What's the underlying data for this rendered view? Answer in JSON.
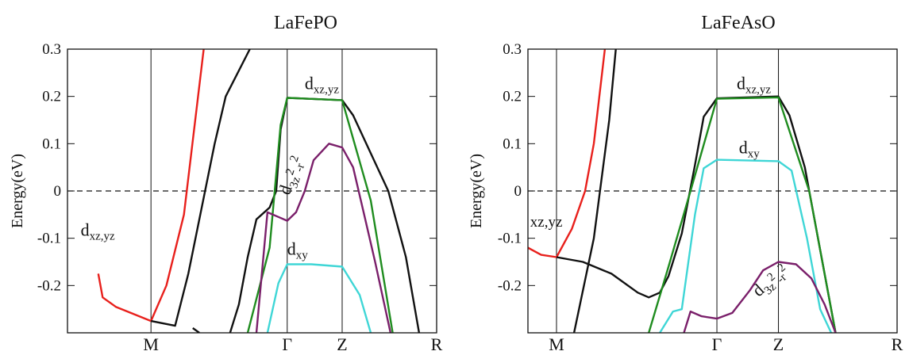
{
  "chart_data": [
    {
      "type": "line",
      "title": "LaFePO",
      "xlabel": "",
      "ylabel": "Energy(eV)",
      "ylim": [
        -0.3,
        0.3
      ],
      "yticks": [
        "0.3",
        "0.2",
        "0.1",
        "0",
        "-0.1",
        "-0.2"
      ],
      "ytick_values": [
        0.3,
        0.2,
        0.1,
        0,
        -0.1,
        -0.2
      ],
      "kpoints": [
        {
          "label": "M",
          "x": 0.38
        },
        {
          "label": "Γ",
          "x": 1.0
        },
        {
          "label": "Z",
          "x": 1.25
        },
        {
          "label": "R",
          "x": 1.68
        }
      ],
      "xlim": [
        0,
        1.68
      ],
      "fermi_level": 0,
      "grid": false,
      "colors": {
        "red": "#e8201c",
        "black": "#111111",
        "green": "#1f8c1f",
        "purple": "#7a1f6a",
        "cyan": "#3fd6d6"
      },
      "annotations": [
        {
          "text": "dxz,yz",
          "x": 1.08,
          "y": 0.215
        },
        {
          "text": "d3z2-r2",
          "x": 1.01,
          "y": -0.01,
          "rotate": -72
        },
        {
          "text": "dxy",
          "x": 1.0,
          "y": -0.135
        },
        {
          "text": "dxz,yz",
          "x": 0.06,
          "y": -0.095
        }
      ],
      "series": [
        {
          "color": "red",
          "x": [
            0.14,
            0.16,
            0.22,
            0.38,
            0.45,
            0.53,
            0.62
          ],
          "y": [
            -0.175,
            -0.225,
            -0.245,
            -0.275,
            -0.2,
            -0.05,
            0.3
          ]
        },
        {
          "color": "black",
          "x": [
            0.38,
            0.49,
            0.55,
            0.67,
            0.72,
            0.83
          ],
          "y": [
            -0.275,
            -0.285,
            -0.175,
            0.1,
            0.2,
            0.3
          ]
        },
        {
          "color": "black",
          "x": [
            0.57,
            0.6
          ],
          "y": [
            -0.29,
            -0.3
          ]
        },
        {
          "color": "black",
          "x": [
            0.74,
            0.78,
            0.82,
            0.86,
            0.92,
            0.95,
            0.97,
            1.0,
            1.25,
            1.3,
            1.4,
            1.46,
            1.54,
            1.6
          ],
          "y": [
            -0.3,
            -0.24,
            -0.14,
            -0.06,
            -0.035,
            0.0,
            0.13,
            0.197,
            0.192,
            0.16,
            0.06,
            0.0,
            -0.14,
            -0.3
          ]
        },
        {
          "color": "green",
          "x": [
            0.82,
            0.92,
            0.97,
            1.0,
            1.25,
            1.38,
            1.48
          ],
          "y": [
            -0.3,
            -0.12,
            0.14,
            0.197,
            0.192,
            -0.02,
            -0.3
          ]
        },
        {
          "color": "purple",
          "x": [
            0.86,
            0.91,
            0.96,
            1.0,
            1.04,
            1.08,
            1.12,
            1.19,
            1.25,
            1.3,
            1.35,
            1.4,
            1.47
          ],
          "y": [
            -0.3,
            -0.045,
            -0.055,
            -0.063,
            -0.045,
            0.0,
            0.065,
            0.1,
            0.092,
            0.05,
            -0.05,
            -0.15,
            -0.3
          ]
        },
        {
          "color": "cyan",
          "x": [
            0.91,
            0.96,
            1.0,
            1.11,
            1.25,
            1.33,
            1.38
          ],
          "y": [
            -0.3,
            -0.195,
            -0.155,
            -0.155,
            -0.16,
            -0.22,
            -0.3
          ]
        }
      ]
    },
    {
      "type": "line",
      "title": "LaFeAsO",
      "xlabel": "",
      "ylabel": "Energy(eV)",
      "ylim": [
        -0.3,
        0.3
      ],
      "yticks": [
        "0.3",
        "0.2",
        "0.1",
        "0",
        "-0.1",
        "-0.2"
      ],
      "ytick_values": [
        0.3,
        0.2,
        0.1,
        0,
        -0.1,
        -0.2
      ],
      "kpoints": [
        {
          "label": "M",
          "x": 0.13
        },
        {
          "label": "Γ",
          "x": 0.86
        },
        {
          "label": "Z",
          "x": 1.14
        },
        {
          "label": "R",
          "x": 1.68
        }
      ],
      "xlim": [
        0,
        1.68
      ],
      "fermi_level": 0,
      "grid": false,
      "colors": {
        "red": "#e8201c",
        "black": "#111111",
        "green": "#1f8c1f",
        "purple": "#7a1f6a",
        "cyan": "#3fd6d6"
      },
      "annotations": [
        {
          "text": "dxz,yz",
          "x": 0.95,
          "y": 0.215
        },
        {
          "text": "dxy",
          "x": 0.96,
          "y": 0.08
        },
        {
          "text": "xz,yz",
          "x": 0.01,
          "y": -0.075
        },
        {
          "text": "d3z2-r2",
          "x": 1.05,
          "y": -0.225,
          "rotate": -42
        }
      ],
      "series": [
        {
          "color": "red",
          "x": [
            0.0,
            0.06,
            0.13,
            0.2,
            0.26,
            0.3,
            0.35
          ],
          "y": [
            -0.12,
            -0.135,
            -0.14,
            -0.08,
            0.0,
            0.1,
            0.3
          ]
        },
        {
          "color": "black",
          "x": [
            0.21,
            0.3,
            0.37,
            0.4
          ],
          "y": [
            -0.3,
            -0.1,
            0.15,
            0.3
          ]
        },
        {
          "color": "black",
          "x": [
            0.13,
            0.25,
            0.38,
            0.5,
            0.55,
            0.6,
            0.64,
            0.7,
            0.76,
            0.8,
            0.86,
            1.14,
            1.19,
            1.26,
            1.34,
            1.4
          ],
          "y": [
            -0.14,
            -0.15,
            -0.175,
            -0.215,
            -0.225,
            -0.215,
            -0.18,
            -0.09,
            0.055,
            0.157,
            0.196,
            0.2,
            0.16,
            0.05,
            -0.15,
            -0.3
          ]
        },
        {
          "color": "green",
          "x": [
            0.55,
            0.64,
            0.74,
            0.86,
            1.14,
            1.28,
            1.4
          ],
          "y": [
            -0.3,
            -0.16,
            0.0,
            0.195,
            0.198,
            0.0,
            -0.3
          ]
        },
        {
          "color": "cyan",
          "x": [
            0.6,
            0.66,
            0.7,
            0.76,
            0.8,
            0.86,
            1.14,
            1.2,
            1.27,
            1.33,
            1.38
          ],
          "y": [
            -0.3,
            -0.255,
            -0.25,
            -0.05,
            0.048,
            0.066,
            0.063,
            0.043,
            -0.1,
            -0.25,
            -0.3
          ]
        },
        {
          "color": "purple",
          "x": [
            0.71,
            0.74,
            0.79,
            0.86,
            0.93,
            1.01,
            1.07,
            1.14,
            1.22,
            1.29,
            1.35,
            1.4
          ],
          "y": [
            -0.3,
            -0.255,
            -0.265,
            -0.27,
            -0.258,
            -0.21,
            -0.168,
            -0.15,
            -0.155,
            -0.185,
            -0.24,
            -0.3
          ]
        }
      ]
    }
  ]
}
